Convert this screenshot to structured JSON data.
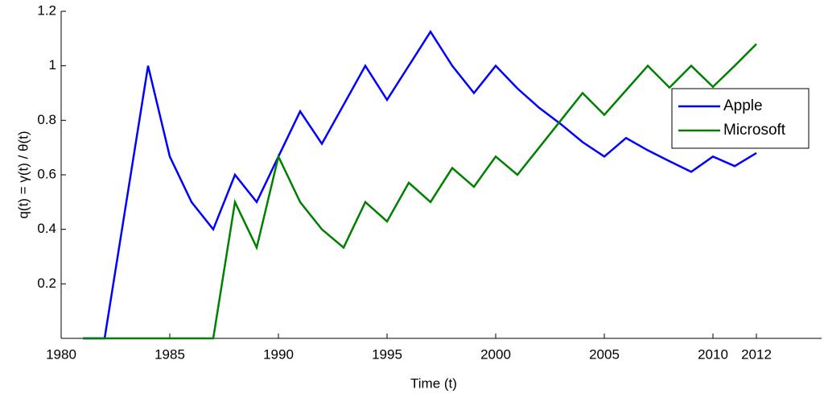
{
  "chart_data": {
    "type": "line",
    "xlabel": "Time (t)",
    "ylabel": "q(t) = γ(t)  / θ(t)",
    "x": [
      1981,
      1982,
      1983,
      1984,
      1985,
      1986,
      1987,
      1988,
      1989,
      1990,
      1991,
      1992,
      1993,
      1994,
      1995,
      1996,
      1997,
      1998,
      1999,
      2000,
      2001,
      2002,
      2003,
      2004,
      2005,
      2006,
      2007,
      2008,
      2009,
      2010,
      2011,
      2012
    ],
    "series": [
      {
        "name": "Apple",
        "color": "#0000ff",
        "values": [
          0,
          0,
          0.5,
          1.0,
          0.667,
          0.5,
          0.4,
          0.6,
          0.5,
          0.667,
          0.833,
          0.714,
          0.857,
          1.0,
          0.875,
          1.0,
          1.125,
          1.0,
          0.9,
          1.0,
          0.917,
          0.846,
          0.786,
          0.72,
          0.667,
          0.735,
          0.69,
          0.65,
          0.611,
          0.667,
          0.632,
          0.68
        ]
      },
      {
        "name": "Microsoft",
        "color": "#008000",
        "values": [
          0,
          0,
          0,
          0,
          0,
          0,
          0,
          0.5,
          0.333,
          0.667,
          0.5,
          0.4,
          0.333,
          0.5,
          0.429,
          0.571,
          0.5,
          0.625,
          0.556,
          0.667,
          0.6,
          0.7,
          0.8,
          0.9,
          0.82,
          0.91,
          1.0,
          0.92,
          1.0,
          0.923,
          1.0,
          1.08
        ]
      }
    ],
    "xlim": [
      1980,
      2015
    ],
    "xticks": [
      1980,
      1985,
      1990,
      1995,
      2000,
      2005,
      2010,
      2012
    ],
    "ylim": [
      0,
      1.2
    ],
    "yticks": [
      0.2,
      0.4,
      0.6,
      0.8,
      1,
      1.2
    ],
    "legend": "east"
  }
}
